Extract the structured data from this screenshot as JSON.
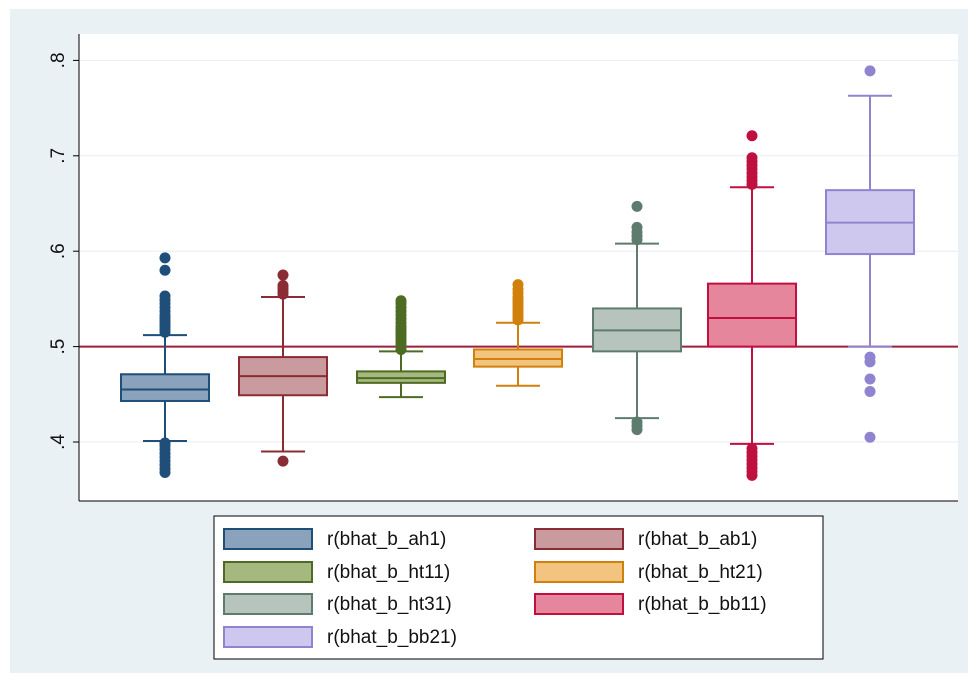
{
  "chart_data": {
    "type": "box",
    "title": "",
    "xlabel": "",
    "ylabel": "",
    "ylim": [
      0.35,
      0.825
    ],
    "yticks": [
      {
        "value": 0.4,
        "label": ".4"
      },
      {
        "value": 0.5,
        "label": ".5"
      },
      {
        "value": 0.6,
        "label": ".6"
      },
      {
        "value": 0.7,
        "label": ".7"
      },
      {
        "value": 0.8,
        "label": ".8"
      }
    ],
    "reference_line": {
      "y": 0.5,
      "color": "#9b1f3a"
    },
    "grid": true,
    "legend_position": "bottom",
    "series": [
      {
        "name": "r(bhat_b_ah1)",
        "fill": "#8aa2bb",
        "stroke": "#1f4e79",
        "q1": 0.443,
        "median": 0.455,
        "q3": 0.471,
        "whisker_low": 0.401,
        "whisker_high": 0.512,
        "outliers": [
          0.368,
          0.372,
          0.376,
          0.38,
          0.384,
          0.388,
          0.392,
          0.396,
          0.399,
          0.515,
          0.518,
          0.521,
          0.524,
          0.527,
          0.53,
          0.533,
          0.537,
          0.541,
          0.545,
          0.549,
          0.553,
          0.58,
          0.593
        ]
      },
      {
        "name": "r(bhat_b_ab1)",
        "fill": "#c99a9e",
        "stroke": "#8b2c34",
        "q1": 0.449,
        "median": 0.469,
        "q3": 0.489,
        "whisker_low": 0.39,
        "whisker_high": 0.552,
        "outliers": [
          0.38,
          0.555,
          0.558,
          0.561,
          0.564,
          0.575
        ]
      },
      {
        "name": "r(bhat_b_ht11)",
        "fill": "#a5b87f",
        "stroke": "#4d6b22",
        "q1": 0.462,
        "median": 0.467,
        "q3": 0.474,
        "whisker_low": 0.447,
        "whisker_high": 0.495,
        "outliers": [
          0.497,
          0.5,
          0.503,
          0.506,
          0.509,
          0.512,
          0.515,
          0.518,
          0.521,
          0.525,
          0.529,
          0.533,
          0.537,
          0.541,
          0.545,
          0.548
        ]
      },
      {
        "name": "r(bhat_b_ht21)",
        "fill": "#f3c47f",
        "stroke": "#d2800c",
        "q1": 0.479,
        "median": 0.487,
        "q3": 0.497,
        "whisker_low": 0.459,
        "whisker_high": 0.525,
        "outliers": [
          0.528,
          0.531,
          0.534,
          0.537,
          0.54,
          0.543,
          0.546,
          0.549,
          0.552,
          0.556,
          0.56,
          0.565
        ]
      },
      {
        "name": "r(bhat_b_ht31)",
        "fill": "#b6c4bd",
        "stroke": "#5e7c6d",
        "q1": 0.495,
        "median": 0.517,
        "q3": 0.54,
        "whisker_low": 0.425,
        "whisker_high": 0.608,
        "outliers": [
          0.413,
          0.417,
          0.421,
          0.612,
          0.616,
          0.62,
          0.625,
          0.647
        ]
      },
      {
        "name": "r(bhat_b_bb11)",
        "fill": "#e6869c",
        "stroke": "#c0103f",
        "q1": 0.5,
        "median": 0.53,
        "q3": 0.566,
        "whisker_low": 0.398,
        "whisker_high": 0.667,
        "outliers": [
          0.365,
          0.369,
          0.373,
          0.377,
          0.381,
          0.385,
          0.389,
          0.393,
          0.67,
          0.674,
          0.678,
          0.682,
          0.686,
          0.69,
          0.694,
          0.698,
          0.721
        ]
      },
      {
        "name": "r(bhat_b_bb21)",
        "fill": "#cfc8ee",
        "stroke": "#8f84cf",
        "q1": 0.597,
        "median": 0.63,
        "q3": 0.664,
        "whisker_low": 0.5,
        "whisker_high": 0.763,
        "outliers": [
          0.405,
          0.453,
          0.466,
          0.484,
          0.489,
          0.789
        ]
      }
    ]
  }
}
